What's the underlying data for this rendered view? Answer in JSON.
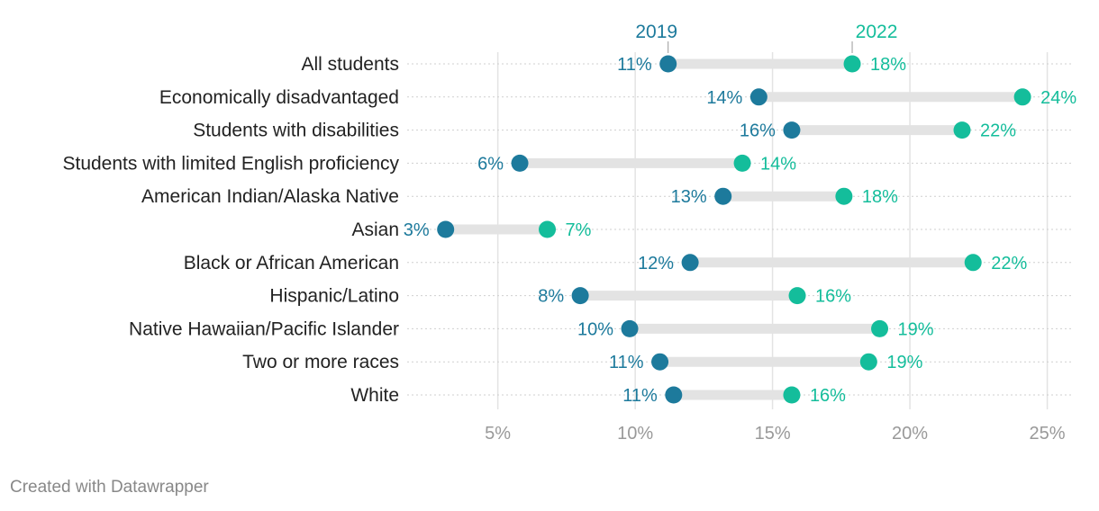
{
  "colors": {
    "series_2019": "#1d7a9c",
    "series_2022": "#14bd9b",
    "connector": "#e3e3e3",
    "gridline": "#e3e3e3",
    "row_dots": "#cfcfcf",
    "category_text": "#222222",
    "tick_text": "#999999",
    "credit_text": "#888888"
  },
  "chart_data": {
    "type": "dot-range",
    "title": "",
    "xlabel": "",
    "ylabel": "",
    "xlim": [
      1.7,
      25.9
    ],
    "x_ticks": [
      5,
      10,
      15,
      20,
      25
    ],
    "x_tick_labels": [
      "5%",
      "10%",
      "15%",
      "20%",
      "25%"
    ],
    "grid": "vertical",
    "legend_placement": "top, labels above first row",
    "series": [
      {
        "name": "2019",
        "color": "#1d7a9c"
      },
      {
        "name": "2022",
        "color": "#14bd9b"
      }
    ],
    "rows": [
      {
        "category": "All students",
        "v2019": 11.2,
        "v2022": 17.9,
        "l2019": "11%",
        "l2022": "18%"
      },
      {
        "category": "Economically disadvantaged",
        "v2019": 14.5,
        "v2022": 24.1,
        "l2019": "14%",
        "l2022": "24%"
      },
      {
        "category": "Students with disabilities",
        "v2019": 15.7,
        "v2022": 21.9,
        "l2019": "16%",
        "l2022": "22%"
      },
      {
        "category": "Students with limited English proficiency",
        "v2019": 5.8,
        "v2022": 13.9,
        "l2019": "6%",
        "l2022": "14%"
      },
      {
        "category": "American Indian/Alaska Native",
        "v2019": 13.2,
        "v2022": 17.6,
        "l2019": "13%",
        "l2022": "18%"
      },
      {
        "category": "Asian",
        "v2019": 3.1,
        "v2022": 6.8,
        "l2019": "3%",
        "l2022": "7%"
      },
      {
        "category": "Black or African American",
        "v2019": 12.0,
        "v2022": 22.3,
        "l2019": "12%",
        "l2022": "22%"
      },
      {
        "category": "Hispanic/Latino",
        "v2019": 8.0,
        "v2022": 15.9,
        "l2019": "8%",
        "l2022": "16%"
      },
      {
        "category": "Native Hawaiian/Pacific Islander",
        "v2019": 9.8,
        "v2022": 18.9,
        "l2019": "10%",
        "l2022": "19%"
      },
      {
        "category": "Two or more races",
        "v2019": 10.9,
        "v2022": 18.5,
        "l2019": "11%",
        "l2022": "19%"
      },
      {
        "category": "White",
        "v2019": 11.4,
        "v2022": 15.7,
        "l2019": "11%",
        "l2022": "16%"
      }
    ]
  },
  "footer": {
    "credit": "Created with Datawrapper"
  }
}
